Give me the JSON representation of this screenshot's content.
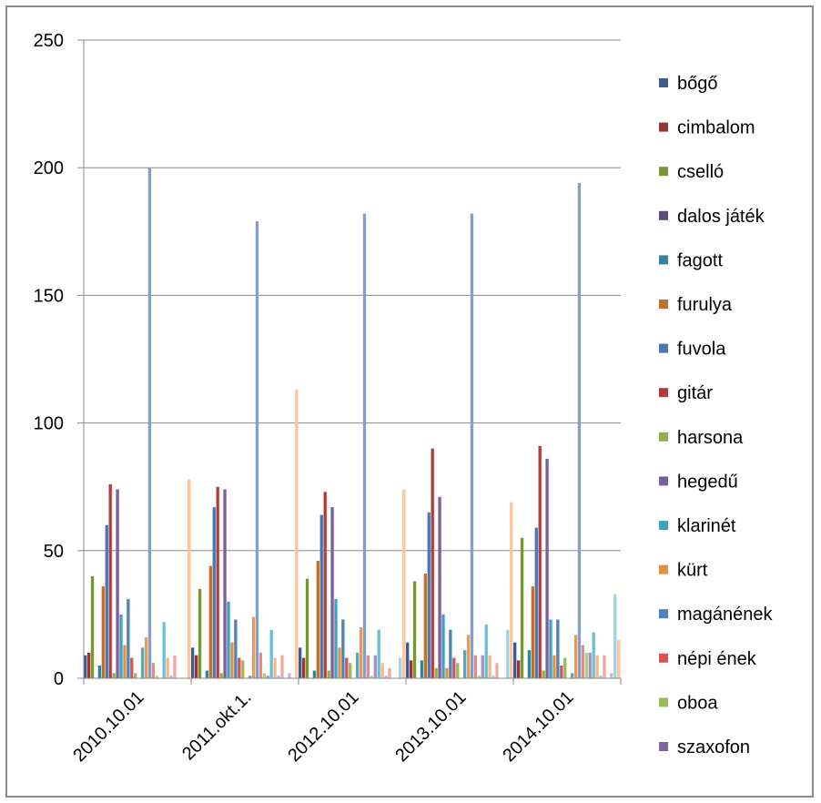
{
  "chart_data": {
    "type": "bar",
    "categories": [
      "2010.10.01",
      "2011.okt.1.",
      "2012.10.01",
      "2013.10.01",
      "2014.10.01"
    ],
    "ylim": [
      0,
      250
    ],
    "yticks": [
      "0",
      "50",
      "100",
      "150",
      "200",
      "250"
    ],
    "grid": true,
    "legend_position": "right",
    "series": [
      {
        "name": "bőgő",
        "color": "#3c5d8c",
        "values": [
          9,
          12,
          12,
          14,
          14
        ]
      },
      {
        "name": "cimbalom",
        "color": "#963634",
        "values": [
          10,
          9,
          8,
          7,
          7
        ]
      },
      {
        "name": "cselló",
        "color": "#77933c",
        "values": [
          40,
          35,
          39,
          38,
          55
        ]
      },
      {
        "name": "dalos játék",
        "color": "#5e4a7d",
        "values": [
          0,
          0,
          0,
          0,
          0
        ]
      },
      {
        "name": "fagott",
        "color": "#31849b",
        "values": [
          5,
          3,
          3,
          7,
          11
        ]
      },
      {
        "name": "furulya",
        "color": "#c0712c",
        "values": [
          36,
          44,
          46,
          41,
          36
        ]
      },
      {
        "name": "fuvola",
        "color": "#4a77b0",
        "values": [
          60,
          67,
          64,
          65,
          59
        ]
      },
      {
        "name": "gitár",
        "color": "#b33b39",
        "values": [
          76,
          75,
          73,
          90,
          91
        ]
      },
      {
        "name": "harsona",
        "color": "#8faf4a",
        "values": [
          2,
          2,
          3,
          4,
          3
        ]
      },
      {
        "name": "hegedű",
        "color": "#7a5e9e",
        "values": [
          74,
          74,
          67,
          71,
          86
        ]
      },
      {
        "name": "klarinét",
        "color": "#3ea3bd",
        "values": [
          25,
          30,
          31,
          25,
          23
        ]
      },
      {
        "name": "kürt",
        "color": "#e3913f",
        "values": [
          13,
          14,
          12,
          4,
          9
        ]
      },
      {
        "name": "magánének",
        "color": "#4f81bd",
        "values": [
          31,
          23,
          23,
          19,
          23
        ]
      },
      {
        "name": "népi ének",
        "color": "#d9534f",
        "values": [
          8,
          8,
          8,
          8,
          5
        ]
      },
      {
        "name": "oboa",
        "color": "#9bbb59",
        "values": [
          2,
          7,
          6,
          6,
          8
        ]
      },
      {
        "name": "szaxofon",
        "color": "#8064a2",
        "values": [
          0,
          0,
          0,
          0,
          0
        ]
      },
      {
        "name": "",
        "color": "#4bacc6",
        "values": [
          12,
          1,
          10,
          11,
          2
        ]
      },
      {
        "name": "",
        "color": "#f79646",
        "values": [
          16,
          24,
          20,
          17,
          17
        ]
      },
      {
        "name": "",
        "color": "#7e9fd1",
        "values": [
          200,
          179,
          182,
          182,
          194
        ]
      },
      {
        "name": "",
        "color": "#e48a88",
        "values": [
          6,
          10,
          9,
          9,
          13
        ]
      },
      {
        "name": "",
        "color": "#b8d07e",
        "values": [
          1,
          2,
          1,
          1,
          10
        ]
      },
      {
        "name": "",
        "color": "#a792c4",
        "values": [
          0,
          1,
          9,
          9,
          10
        ]
      },
      {
        "name": "",
        "color": "#62c2d9",
        "values": [
          22,
          19,
          19,
          21,
          18
        ]
      },
      {
        "name": "",
        "color": "#f9b689",
        "values": [
          8,
          8,
          6,
          9,
          9
        ]
      },
      {
        "name": "",
        "color": "#a7bde3",
        "values": [
          1,
          1,
          1,
          1,
          1
        ]
      },
      {
        "name": "",
        "color": "#f2a9a6",
        "values": [
          9,
          9,
          4,
          6,
          9
        ]
      },
      {
        "name": "",
        "color": "#d7e6a8",
        "values": [
          0,
          0,
          0,
          0,
          0
        ]
      },
      {
        "name": "",
        "color": "#c7b9dc",
        "values": [
          0,
          2,
          0,
          0,
          2
        ]
      },
      {
        "name": "",
        "color": "#9fd3e2",
        "values": [
          0,
          0,
          8,
          19,
          33
        ]
      },
      {
        "name": "",
        "color": "#fbc59f",
        "values": [
          78,
          113,
          74,
          69,
          15
        ]
      }
    ]
  }
}
